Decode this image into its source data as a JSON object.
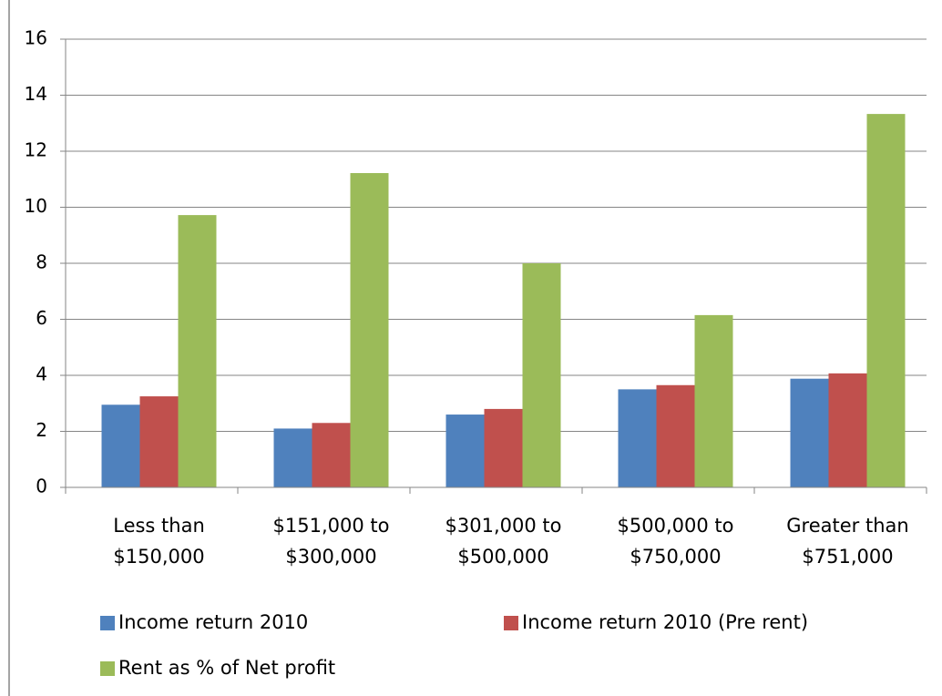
{
  "chart_data": {
    "type": "bar",
    "categories": [
      "Less than $150,000",
      "$151,000 to $300,000",
      "$301,000 to $500,000",
      "$500,000 to $750,000",
      "Greater than $751,000"
    ],
    "series": [
      {
        "name": "Income return 2010",
        "color": "#4f81bd",
        "values": [
          2.95,
          2.1,
          2.6,
          3.5,
          3.88
        ]
      },
      {
        "name": "Income return 2010 (Pre rent)",
        "color": "#c0504d",
        "values": [
          3.25,
          2.3,
          2.8,
          3.65,
          4.07
        ]
      },
      {
        "name": "Rent as % of Net profit",
        "color": "#9bbb59",
        "values": [
          9.72,
          11.22,
          8.0,
          6.15,
          13.33
        ]
      }
    ],
    "ylim": [
      0,
      16
    ],
    "yticks": [
      0,
      2,
      4,
      6,
      8,
      10,
      12,
      14,
      16
    ],
    "grid": true
  }
}
